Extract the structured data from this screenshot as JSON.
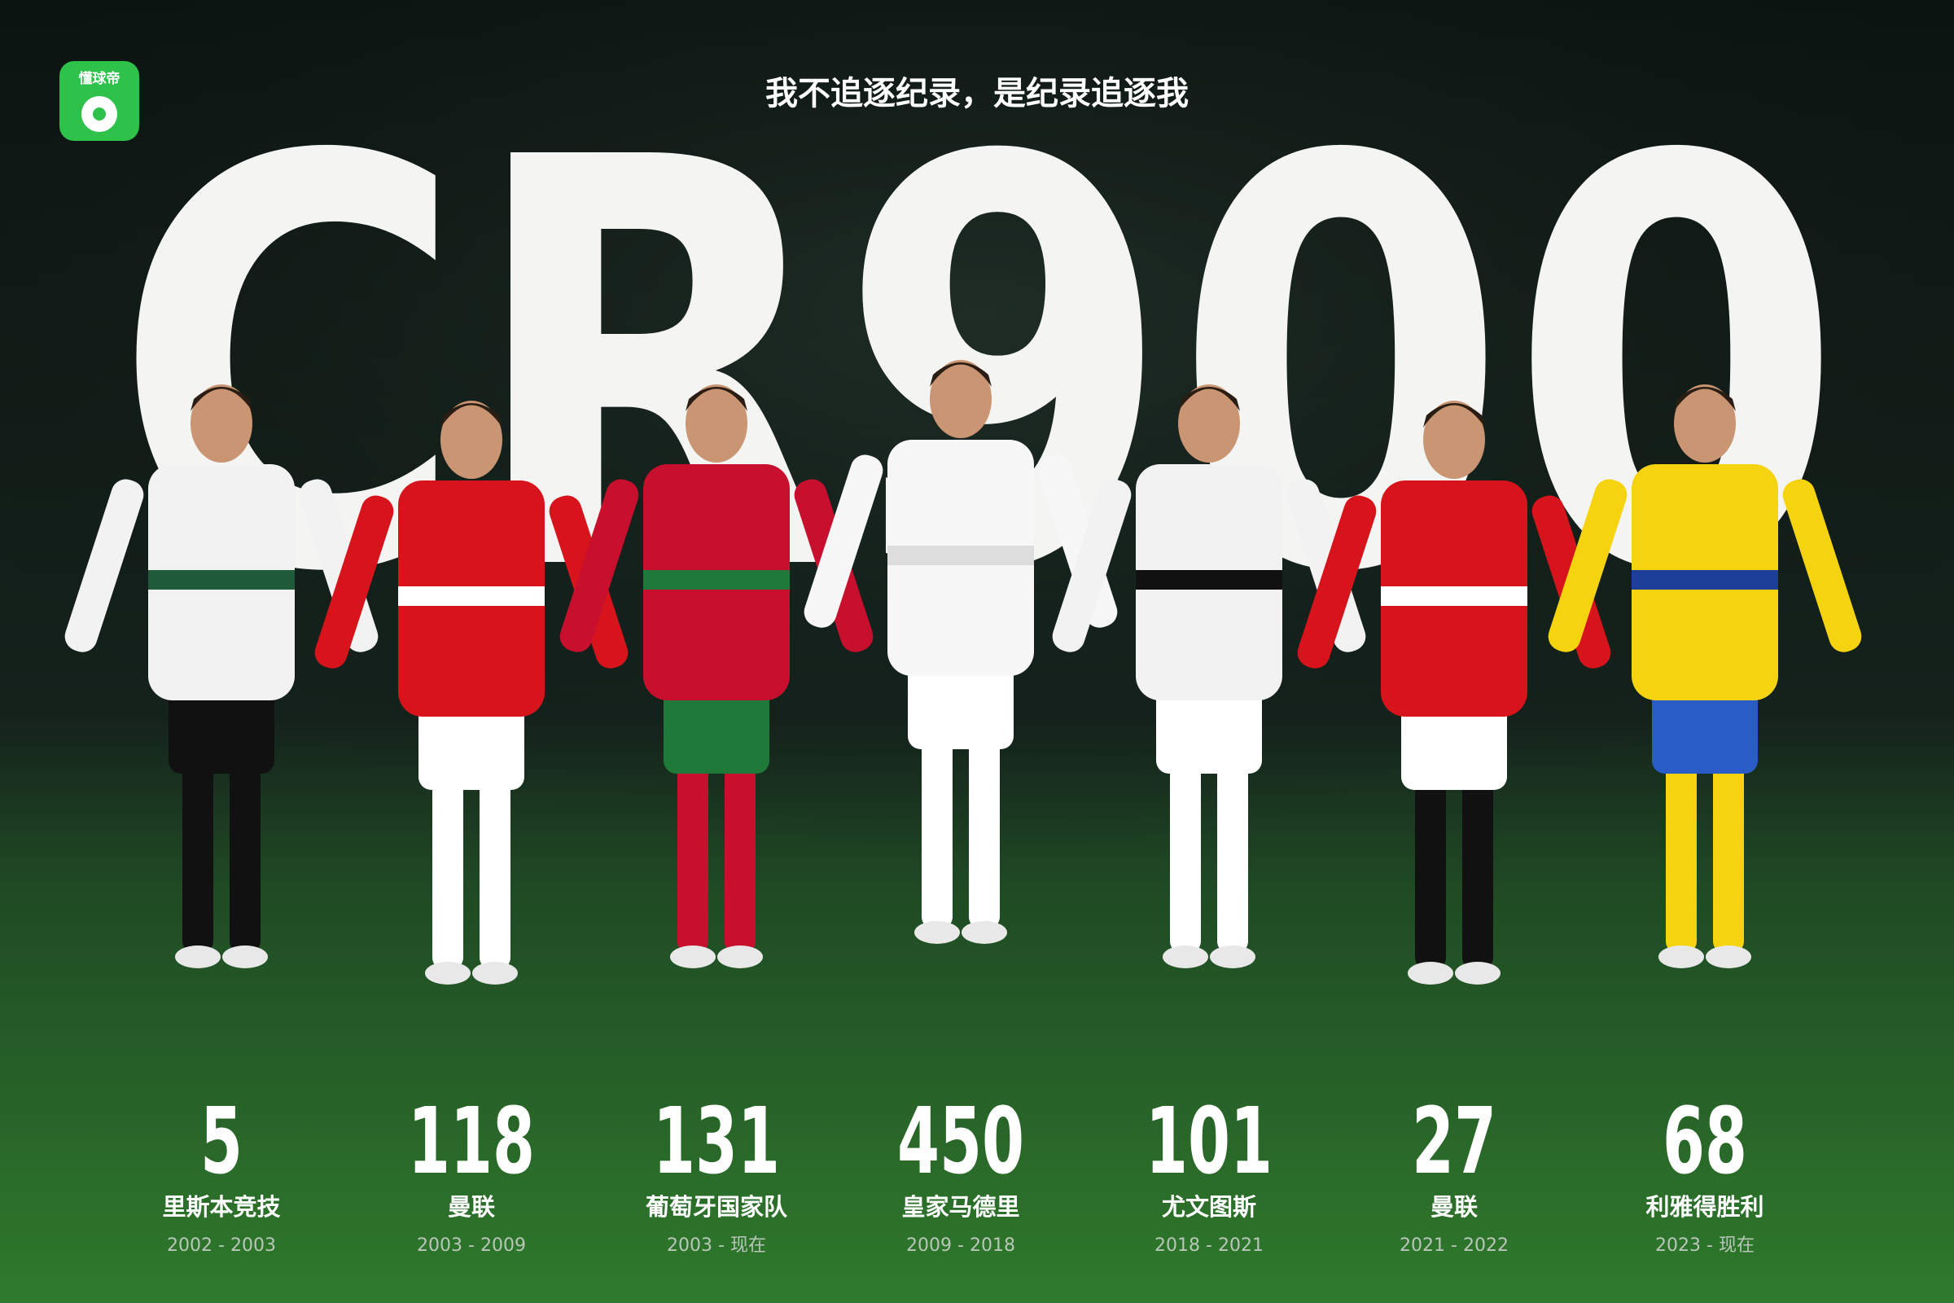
{
  "logo": "懂球帝",
  "tagline": "我不追逐纪录，是纪录追逐我",
  "headline": "CR900",
  "clubs": [
    {
      "goals": "5",
      "club": "里斯本竞技",
      "years": "2002 - 2003"
    },
    {
      "goals": "118",
      "club": "曼联",
      "years": "2003 - 2009"
    },
    {
      "goals": "131",
      "club": "葡萄牙国家队",
      "years": "2003 - 现在"
    },
    {
      "goals": "450",
      "club": "皇家马德里",
      "years": "2009 - 2018"
    },
    {
      "goals": "101",
      "club": "尤文图斯",
      "years": "2018 - 2021"
    },
    {
      "goals": "27",
      "club": "曼联",
      "years": "2021 - 2022"
    },
    {
      "goals": "68",
      "club": "利雅得胜利",
      "years": "2023 - 现在"
    }
  ]
}
